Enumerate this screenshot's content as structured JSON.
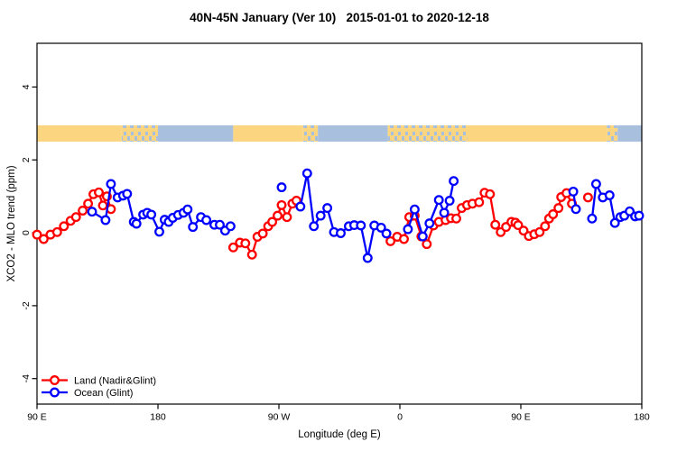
{
  "title": "40N-45N January (Ver 10)   2015-01-01 to 2020-12-18",
  "legend": {
    "entries": [
      {
        "label": "Land (Nadir&Glint)",
        "color": "#ff0000"
      },
      {
        "label": "Ocean (Glint)",
        "color": "#0000ff"
      }
    ]
  },
  "chart_data": {
    "type": "line",
    "title": "40N-45N January (Ver 10)   2015-01-01 to 2020-12-18",
    "xlabel": "Longitude (deg E)",
    "ylabel": "XCO2 - MLO trend (ppm)",
    "grid": false,
    "legend_position": "bottom-left-inside",
    "x_axis": {
      "min": 90,
      "max": 540,
      "note_labels_wrap": "axis runs 90E eastward around the globe to 180, repeating 90E-180",
      "ticks": [
        {
          "value": 90,
          "label": "90 E"
        },
        {
          "value": 180,
          "label": "180"
        },
        {
          "value": 270,
          "label": "90 W"
        },
        {
          "value": 360,
          "label": "0"
        },
        {
          "value": 450,
          "label": "90 E"
        },
        {
          "value": 540,
          "label": "180"
        }
      ]
    },
    "y_axis": {
      "min": -4.7,
      "max": 5.2,
      "ticks": [
        {
          "value": -4,
          "label": "-4"
        },
        {
          "value": -2,
          "label": "-2"
        },
        {
          "value": 0,
          "label": "0"
        },
        {
          "value": 2,
          "label": "2"
        },
        {
          "value": 4,
          "label": "4"
        }
      ]
    },
    "surface_band": {
      "top_value": 2.95,
      "bottom_value": 2.5,
      "land_color": "#fcd581",
      "ocean_color": "#a8c0de",
      "segments": [
        {
          "from": 90,
          "to": 153,
          "type": "land"
        },
        {
          "from": 153,
          "to": 180,
          "type": "mixed"
        },
        {
          "from": 180,
          "to": 236,
          "type": "ocean"
        },
        {
          "from": 236,
          "to": 288,
          "type": "land"
        },
        {
          "from": 288,
          "to": 299,
          "type": "mixed"
        },
        {
          "from": 299,
          "to": 351,
          "type": "ocean"
        },
        {
          "from": 351,
          "to": 410,
          "type": "mixed"
        },
        {
          "from": 410,
          "to": 514,
          "type": "land"
        },
        {
          "from": 514,
          "to": 522,
          "type": "mixed"
        },
        {
          "from": 522,
          "to": 540,
          "type": "ocean"
        }
      ]
    },
    "series": [
      {
        "name": "Land (Nadir&Glint)",
        "color": "#ff0000",
        "marker": "open-circle",
        "runs": [
          [
            [
              90,
              -0.05
            ],
            [
              95,
              -0.17
            ],
            [
              100,
              -0.05
            ],
            [
              105,
              0.02
            ],
            [
              110,
              0.18
            ],
            [
              115,
              0.33
            ],
            [
              119,
              0.43
            ],
            [
              124,
              0.61
            ],
            [
              128,
              0.8
            ],
            [
              132,
              1.06
            ],
            [
              136,
              1.11
            ],
            [
              139,
              0.75
            ],
            [
              142,
              1.0
            ],
            [
              145,
              0.65
            ]
          ],
          [
            [
              236,
              -0.4
            ],
            [
              241,
              -0.27
            ],
            [
              245,
              -0.29
            ],
            [
              250,
              -0.6
            ],
            [
              254,
              -0.11
            ],
            [
              258,
              -0.02
            ],
            [
              262,
              0.18
            ],
            [
              265,
              0.3
            ],
            [
              269,
              0.47
            ],
            [
              272,
              0.76
            ],
            [
              276,
              0.43
            ],
            [
              280,
              0.8
            ],
            [
              283,
              0.88
            ]
          ],
          [
            [
              353,
              -0.23
            ],
            [
              358,
              -0.11
            ],
            [
              363,
              -0.17
            ],
            [
              367,
              0.43
            ],
            [
              371,
              0.47
            ],
            [
              376,
              -0.1
            ],
            [
              380,
              -0.31
            ],
            [
              385,
              0.2
            ],
            [
              389,
              0.3
            ],
            [
              394,
              0.35
            ],
            [
              398,
              0.4
            ],
            [
              402,
              0.39
            ],
            [
              406,
              0.68
            ],
            [
              410,
              0.76
            ],
            [
              414,
              0.8
            ],
            [
              419,
              0.84
            ],
            [
              423,
              1.1
            ],
            [
              427,
              1.06
            ],
            [
              431,
              0.22
            ],
            [
              435,
              0.02
            ],
            [
              439,
              0.16
            ],
            [
              443,
              0.3
            ],
            [
              446,
              0.28
            ],
            [
              448,
              0.21
            ],
            [
              452,
              0.06
            ],
            [
              456,
              -0.09
            ],
            [
              460,
              -0.04
            ],
            [
              464,
              0.02
            ],
            [
              468,
              0.18
            ],
            [
              471,
              0.39
            ],
            [
              474,
              0.51
            ],
            [
              478,
              0.68
            ],
            [
              480,
              0.98
            ],
            [
              484,
              1.09
            ],
            [
              488,
              0.8
            ]
          ],
          [
            [
              500,
              0.97
            ]
          ]
        ]
      },
      {
        "name": "Ocean (Glint)",
        "color": "#0000ff",
        "marker": "open-circle",
        "runs": [
          [
            [
              131,
              0.58
            ],
            [
              141,
              0.35
            ],
            [
              145,
              1.34
            ],
            [
              150,
              0.97
            ],
            [
              154,
              1.02
            ],
            [
              157,
              1.07
            ],
            [
              162,
              0.3
            ],
            [
              164,
              0.25
            ],
            [
              169,
              0.5
            ],
            [
              172,
              0.55
            ],
            [
              175,
              0.5
            ],
            [
              181,
              0.03
            ],
            [
              185,
              0.36
            ],
            [
              188,
              0.3
            ],
            [
              191,
              0.41
            ],
            [
              195,
              0.49
            ],
            [
              199,
              0.55
            ],
            [
              202,
              0.64
            ],
            [
              206,
              0.16
            ],
            [
              212,
              0.43
            ],
            [
              216,
              0.35
            ],
            [
              222,
              0.22
            ],
            [
              226,
              0.22
            ],
            [
              230,
              0.06
            ],
            [
              234,
              0.18
            ]
          ],
          [
            [
              272,
              1.25
            ]
          ],
          [
            [
              286,
              0.72
            ],
            [
              291,
              1.63
            ],
            [
              296,
              0.18
            ],
            [
              301,
              0.47
            ],
            [
              306,
              0.68
            ],
            [
              311,
              0.02
            ],
            [
              316,
              -0.01
            ],
            [
              322,
              0.18
            ],
            [
              326,
              0.21
            ],
            [
              331,
              0.2
            ],
            [
              336,
              -0.69
            ],
            [
              341,
              0.2
            ],
            [
              346,
              0.14
            ],
            [
              350,
              -0.02
            ]
          ],
          [
            [
              366,
              0.1
            ],
            [
              371,
              0.64
            ],
            [
              377,
              -0.1
            ],
            [
              382,
              0.26
            ],
            [
              389,
              0.9
            ],
            [
              393,
              0.55
            ],
            [
              397,
              0.88
            ],
            [
              400,
              1.42
            ]
          ],
          [
            [
              489,
              1.13
            ],
            [
              491,
              0.65
            ]
          ],
          [
            [
              503,
              0.39
            ],
            [
              506,
              1.34
            ],
            [
              511,
              0.97
            ],
            [
              516,
              1.03
            ],
            [
              520,
              0.27
            ],
            [
              524,
              0.43
            ],
            [
              527,
              0.47
            ],
            [
              531,
              0.59
            ],
            [
              535,
              0.45
            ],
            [
              538,
              0.47
            ]
          ]
        ]
      }
    ]
  }
}
